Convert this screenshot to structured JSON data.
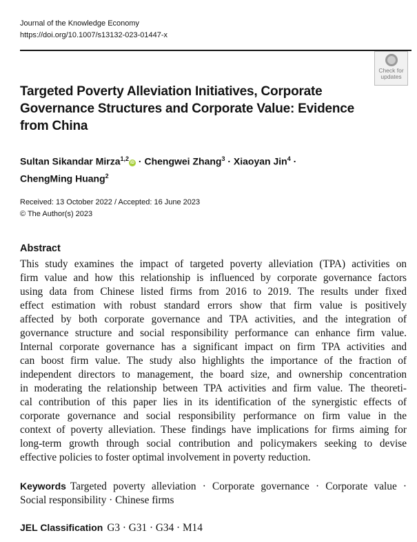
{
  "header": {
    "journal": "Journal of the Knowledge Economy",
    "doi": "https://doi.org/10.1007/s13132-023-01447-x"
  },
  "badge": {
    "line1": "Check for",
    "line2": "updates"
  },
  "title_lines": [
    "Targeted Poverty Alleviation Initiatives, Corporate",
    "Governance Structures and Corporate Value: Evidence",
    "from China"
  ],
  "authors": [
    {
      "name": "Sultan Sikandar Mirza",
      "aff": "1,2",
      "orcid": "iD"
    },
    {
      "name": "Chengwei Zhang",
      "aff": "3"
    },
    {
      "name": "Xiaoyan Jin",
      "aff": "4"
    },
    {
      "name": "ChengMing Huang",
      "aff": "2"
    }
  ],
  "separator": " · ",
  "dates": {
    "received": "Received: 13 October 2022 / Accepted: 16 June 2023",
    "copyright": "© The Author(s) 2023"
  },
  "abstract": {
    "heading": "Abstract",
    "lines": [
      "This study examines the impact of targeted poverty alleviation (TPA) activities on",
      "firm value and how this relationship is influenced by corporate governance factors",
      "using data from Chinese listed firms from 2016 to 2019. The results under fixed",
      "effect estimation with robust standard errors show that firm value is positively",
      "affected by both corporate governance and TPA activities, and the integration of",
      "governance structure and social responsibility performance can enhance firm value.",
      "Internal corporate governance has a significant impact on firm TPA activities and",
      "can boost firm value. The study also highlights the importance of the fraction of",
      "independent directors to management, the board size, and ownership concentration",
      "in moderating the relationship between TPA activities and firm value. The theoreti-",
      "cal contribution of this paper lies in its identification of the synergistic effects of",
      "corporate governance and social responsibility performance on firm value in the",
      "context of poverty alleviation. These findings have implications for firms aiming for",
      "long-term growth through social contribution and policymakers seeking to devise",
      "effective policies to foster optimal involvement in poverty reduction."
    ]
  },
  "keywords": {
    "label": "Keywords",
    "line1": "Targeted poverty alleviation · Corporate governance · Corporate value ·",
    "line2": "Social responsibility · Chinese firms"
  },
  "jel": {
    "label": "JEL Classification",
    "value": "G3 · G31 · G34 · M14"
  }
}
